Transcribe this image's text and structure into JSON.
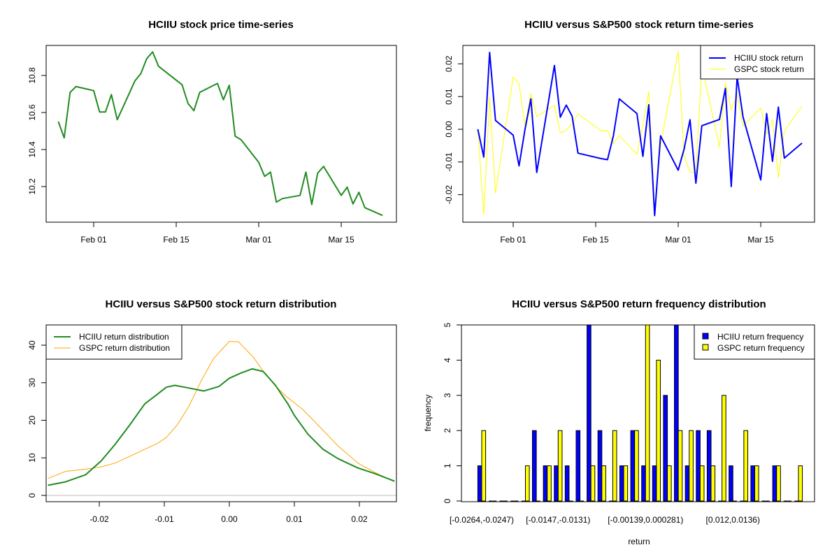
{
  "chart_data": [
    {
      "type": "line",
      "title": "HCIIU stock price time-series",
      "xlabel": "",
      "ylabel": "",
      "x_ticks": [
        "Feb 01",
        "Feb 15",
        "Mar 01",
        "Mar 15"
      ],
      "y_ticks": [
        "10.2",
        "10.4",
        "10.6",
        "10.8"
      ],
      "ylim": [
        10.0,
        10.96
      ],
      "grid": false,
      "series": [
        {
          "color": "#228B22",
          "x": [
            "Jan 26",
            "Jan 27",
            "Jan 28",
            "Jan 29",
            "Feb 01",
            "Feb 02",
            "Feb 03",
            "Feb 04",
            "Feb 05",
            "Feb 08",
            "Feb 09",
            "Feb 10",
            "Feb 11",
            "Feb 12",
            "Feb 16",
            "Feb 17",
            "Feb 18",
            "Feb 19",
            "Feb 22",
            "Feb 23",
            "Feb 24",
            "Feb 25",
            "Feb 26",
            "Mar 01",
            "Mar 02",
            "Mar 03",
            "Mar 04",
            "Mar 05",
            "Mar 08",
            "Mar 09",
            "Mar 10",
            "Mar 11",
            "Mar 12",
            "Mar 15",
            "Mar 16",
            "Mar 17",
            "Mar 18",
            "Mar 19",
            "Mar 22"
          ],
          "y": [
            10.551,
            10.463,
            10.709,
            10.74,
            10.718,
            10.603,
            10.603,
            10.697,
            10.561,
            10.771,
            10.81,
            10.891,
            10.927,
            10.85,
            10.75,
            10.649,
            10.61,
            10.709,
            10.757,
            10.669,
            10.747,
            10.472,
            10.453,
            10.331,
            10.255,
            10.278,
            10.116,
            10.135,
            10.152,
            10.278,
            10.103,
            10.272,
            10.309,
            10.152,
            10.197,
            10.106,
            10.169,
            10.086,
            10.044
          ]
        }
      ]
    },
    {
      "type": "line",
      "title": "HCIIU versus S&P500 stock return time-series",
      "xlabel": "",
      "ylabel": "",
      "x_ticks": [
        "Feb 01",
        "Feb 15",
        "Mar 01",
        "Mar 15"
      ],
      "y_ticks": [
        "-0.02",
        "-0.01",
        "0.00",
        "0.01",
        "0.02"
      ],
      "ylim": [
        -0.0285,
        0.0255
      ],
      "grid": false,
      "legend_position": "top-right",
      "x": [
        "Jan 26",
        "Jan 27",
        "Jan 28",
        "Jan 29",
        "Feb 01",
        "Feb 02",
        "Feb 03",
        "Feb 04",
        "Feb 05",
        "Feb 08",
        "Feb 09",
        "Feb 10",
        "Feb 11",
        "Feb 12",
        "Feb 16",
        "Feb 17",
        "Feb 18",
        "Feb 19",
        "Feb 22",
        "Feb 23",
        "Feb 24",
        "Feb 25",
        "Feb 26",
        "Mar 01",
        "Mar 02",
        "Mar 03",
        "Mar 04",
        "Mar 05",
        "Mar 08",
        "Mar 09",
        "Mar 10",
        "Mar 11",
        "Mar 12",
        "Mar 15",
        "Mar 16",
        "Mar 17",
        "Mar 18",
        "Mar 19",
        "Mar 22"
      ],
      "series": [
        {
          "name": "HCIIU stock return",
          "color": "#0000FF",
          "values": [
            0,
            -0.0085,
            0.0235,
            0.0027,
            -0.0018,
            -0.0112,
            0.0,
            0.0093,
            -0.0132,
            0.0195,
            0.0037,
            0.0074,
            0.004,
            -0.0073,
            -0.009,
            -0.0093,
            -0.002,
            0.0093,
            0.0048,
            -0.0083,
            0.0075,
            -0.0264,
            -0.002,
            -0.0125,
            -0.006,
            0.0029,
            -0.0165,
            0.0011,
            0.003,
            0.0125,
            -0.0175,
            0.016,
            0.0037,
            -0.0155,
            0.0048,
            -0.0098,
            0.0068,
            -0.0088,
            -0.0042
          ]
        },
        {
          "name": "GSPC stock return",
          "color": "#FFFF00",
          "values": [
            0,
            -0.026,
            0.0098,
            -0.0195,
            0.016,
            0.0139,
            0.001,
            0.0109,
            0.0039,
            0.0074,
            -0.0011,
            -0.0003,
            0.0017,
            0.0047,
            -0.0006,
            -0.0003,
            -0.0044,
            -0.0019,
            -0.0077,
            0.0012,
            0.0114,
            -0.0245,
            -0.0048,
            0.0238,
            -0.0081,
            -0.0131,
            -0.0134,
            0.0195,
            -0.0054,
            0.0141,
            0.006,
            0.0104,
            0.001,
            0.0065,
            -0.0016,
            0.0029,
            -0.0148,
            -0.0006,
            0.0071
          ]
        }
      ]
    },
    {
      "type": "line",
      "title": "HCIIU versus S&P500 stock return distribution",
      "xlabel": "",
      "ylabel": "",
      "x_ticks": [
        "-0.02",
        "-0.01",
        "0.00",
        "0.01",
        "0.02"
      ],
      "y_ticks": [
        "0",
        "10",
        "20",
        "30",
        "40"
      ],
      "xlim": [
        -0.0279,
        0.0254
      ],
      "ylim": [
        -1.7,
        45.5
      ],
      "grid": false,
      "legend_position": "top-left",
      "series": [
        {
          "name": "HCIIU return distribution",
          "color": "#228B22",
          "x": [
            -0.0279,
            -0.0252,
            -0.0221,
            -0.0197,
            -0.0176,
            -0.0153,
            -0.013,
            -0.0111,
            -0.0097,
            -0.0084,
            -0.0062,
            -0.0039,
            -0.0016,
            0,
            0.0018,
            0.0035,
            0.0052,
            0.0071,
            0.009,
            0.01,
            0.0121,
            0.0144,
            0.0167,
            0.0198,
            0.0224,
            0.0254
          ],
          "y": [
            2.7,
            3.6,
            5.5,
            9.2,
            13.5,
            18.8,
            24.4,
            26.9,
            28.8,
            29.3,
            28.6,
            27.8,
            29.0,
            31.2,
            32.6,
            33.7,
            33.0,
            29.3,
            24.4,
            21.3,
            16.3,
            12.3,
            9.8,
            7.3,
            5.8,
            3.8
          ]
        },
        {
          "name": "GSPC return distribution",
          "color": "#FFA500",
          "x": [
            -0.0279,
            -0.0252,
            -0.0221,
            -0.0197,
            -0.0176,
            -0.0153,
            -0.013,
            -0.0111,
            -0.0097,
            -0.008,
            -0.0062,
            -0.0043,
            -0.0024,
            0,
            0.0014,
            0.0037,
            0.0052,
            0.0071,
            0.009,
            0.0113,
            0.0136,
            0.0167,
            0.0198,
            0.0224,
            0.0254
          ],
          "y": [
            4.5,
            6.4,
            7.0,
            7.6,
            8.6,
            10.4,
            12.3,
            13.8,
            15.4,
            18.8,
            23.8,
            30.6,
            36.5,
            41.0,
            40.9,
            36.8,
            33.1,
            29.1,
            26.0,
            22.9,
            18.8,
            13.2,
            8.6,
            6.1,
            3.6
          ]
        }
      ]
    },
    {
      "type": "bar",
      "title": "HCIIU versus S&P500 return frequency distribution",
      "xlabel": "return",
      "ylabel": "frequency",
      "y_ticks": [
        "0",
        "1",
        "2",
        "3",
        "4",
        "5"
      ],
      "ylim": [
        0,
        5
      ],
      "grid": false,
      "legend_position": "top-right",
      "shown_category_labels": [
        {
          "group": 1,
          "label": "[-0.0264,-0.0247)"
        },
        {
          "group": 8,
          "label": "[-0.0147,-0.0131)"
        },
        {
          "group": 16,
          "label": "[-0.00139,0.000281)"
        },
        {
          "group": 24,
          "label": "[0.012,0.0136)"
        }
      ],
      "series": [
        {
          "name": "HCIIU return frequency",
          "color": "#0000FF",
          "values": [
            1,
            0,
            0,
            0,
            0,
            2,
            1,
            1,
            1,
            2,
            5,
            2,
            0,
            1,
            2,
            1,
            1,
            3,
            5,
            1,
            2,
            2,
            0,
            1,
            0,
            1,
            0,
            1,
            0,
            0
          ]
        },
        {
          "name": "GSPC return frequency",
          "color": "#FFFF00",
          "values": [
            2,
            0,
            0,
            0,
            1,
            0,
            1,
            2,
            0,
            0,
            1,
            1,
            2,
            1,
            2,
            5,
            4,
            1,
            2,
            2,
            1,
            1,
            3,
            0,
            2,
            1,
            0,
            1,
            0,
            1
          ]
        }
      ]
    }
  ]
}
